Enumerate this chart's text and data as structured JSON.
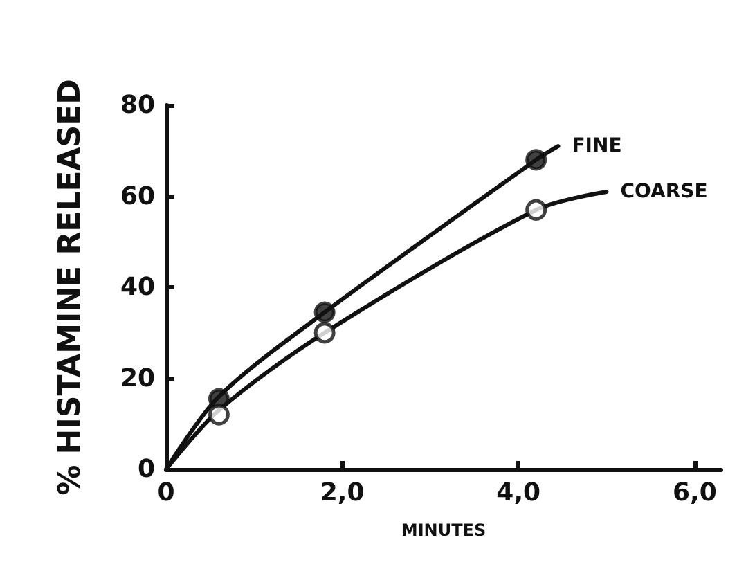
{
  "chart_data": {
    "type": "line",
    "xlabel": "MINUTES",
    "ylabel": "% HISTAMINE RELEASED",
    "xlim": [
      0,
      6.3
    ],
    "xticks": [
      0,
      {
        "value": 2,
        "label": "2,0"
      },
      {
        "value": 4,
        "label": "4,0"
      },
      {
        "value": 6,
        "label": "6,0"
      }
    ],
    "ylim": [
      0,
      80
    ],
    "yticks": [
      0,
      20,
      40,
      60,
      80
    ],
    "grid": false,
    "legend": false,
    "line_style": "solid",
    "series": [
      {
        "name": "FINE",
        "color": "#111111",
        "x": [
          0,
          0.6,
          1.8,
          4.2,
          4.45
        ],
        "values": [
          0,
          16,
          34.5,
          68,
          71
        ]
      },
      {
        "name": "COARSE",
        "color": "#111111",
        "x": [
          0,
          0.6,
          1.8,
          4.2,
          5.0
        ],
        "values": [
          0,
          13,
          30,
          57,
          61
        ]
      },
      {
        "type": "scatter",
        "marker": "circle",
        "color": "#111111",
        "x": [
          0.6,
          1.8,
          4.2
        ],
        "values": [
          15.5,
          34.5,
          68
        ]
      },
      {
        "type": "scatter",
        "marker": "circle",
        "color": "#ffffff",
        "x": [
          0.6,
          1.8,
          4.2
        ],
        "values": [
          12,
          30,
          57
        ]
      }
    ]
  }
}
